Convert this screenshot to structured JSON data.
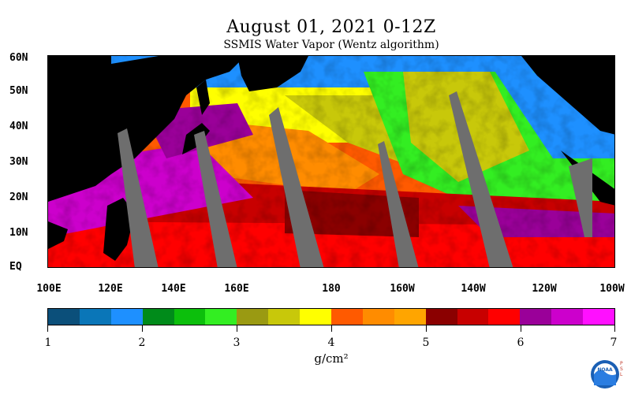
{
  "header": {
    "title": "August 01, 2021 0-12Z",
    "subtitle": "SSMIS Water Vapor (Wentz algorithm)"
  },
  "map": {
    "lat_labels": [
      "60N",
      "50N",
      "40N",
      "30N",
      "20N",
      "10N",
      "EQ"
    ],
    "lon_labels": [
      "100E",
      "120E",
      "140E",
      "160E",
      "180",
      "160W",
      "140W",
      "120W",
      "100W"
    ],
    "land_color": "#000000",
    "missing_color": "#6e6e6e"
  },
  "colorbar": {
    "colors": [
      "#0b4f7a",
      "#0a76b8",
      "#1e90ff",
      "#008b1a",
      "#0cbf0c",
      "#33ee22",
      "#9a9a12",
      "#c8c80a",
      "#ffff00",
      "#ff5a00",
      "#ff8c00",
      "#ffa500",
      "#8b0000",
      "#c80000",
      "#ff0000",
      "#9a0099",
      "#cc00cc",
      "#ff10ff"
    ],
    "tick_labels": [
      "1",
      "2",
      "3",
      "4",
      "5",
      "6",
      "7"
    ],
    "units": "g/cm²"
  },
  "logo": {
    "text": "NOAA",
    "side_text": "PSL"
  }
}
